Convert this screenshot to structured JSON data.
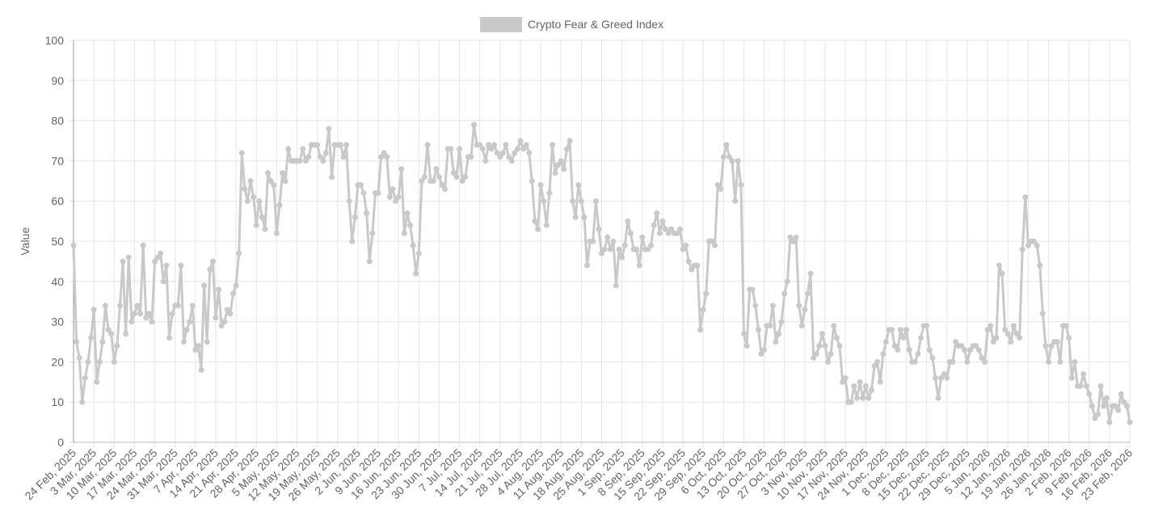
{
  "chart_data": {
    "type": "line",
    "y_label": "Value",
    "ylim": [
      0,
      100
    ],
    "yticks": [
      0,
      10,
      20,
      30,
      40,
      50,
      60,
      70,
      80,
      90,
      100
    ],
    "grid": true,
    "legend": "top",
    "categories": [
      "24 Feb, 2025",
      null,
      null,
      null,
      null,
      null,
      null,
      "3 Mar, 2025",
      null,
      null,
      null,
      null,
      null,
      null,
      "10 Mar, 2025",
      null,
      null,
      null,
      null,
      null,
      null,
      "17 Mar, 2025",
      null,
      null,
      null,
      null,
      null,
      null,
      "24 Mar, 2025",
      null,
      null,
      null,
      null,
      null,
      null,
      "31 Mar, 2025",
      null,
      null,
      null,
      null,
      null,
      null,
      "7 Apr, 2025",
      null,
      null,
      null,
      null,
      null,
      null,
      "14 Apr, 2025",
      null,
      null,
      null,
      null,
      null,
      null,
      "21 Apr, 2025",
      null,
      null,
      null,
      null,
      null,
      null,
      "28 Apr, 2025",
      null,
      null,
      null,
      null,
      null,
      null,
      "5 May, 2025",
      null,
      null,
      null,
      null,
      null,
      null,
      "12 May, 2025",
      null,
      null,
      null,
      null,
      null,
      null,
      "19 May, 2025",
      null,
      null,
      null,
      null,
      null,
      null,
      "26 May, 2025",
      null,
      null,
      null,
      null,
      null,
      null,
      "2 Jun, 2025",
      null,
      null,
      null,
      null,
      null,
      null,
      "9 Jun, 2025",
      null,
      null,
      null,
      null,
      null,
      null,
      "16 Jun, 2025",
      null,
      null,
      null,
      null,
      null,
      null,
      "23 Jun, 2025",
      null,
      null,
      null,
      null,
      null,
      null,
      "30 Jun, 2025",
      null,
      null,
      null,
      null,
      null,
      null,
      "7 Jul, 2025",
      null,
      null,
      null,
      null,
      null,
      null,
      "14 Jul, 2025",
      null,
      null,
      null,
      null,
      null,
      null,
      "21 Jul, 2025",
      null,
      null,
      null,
      null,
      null,
      null,
      "28 Jul, 2025",
      null,
      null,
      null,
      null,
      null,
      null,
      "4 Aug, 2025",
      null,
      null,
      null,
      null,
      null,
      null,
      "11 Aug, 2025",
      null,
      null,
      null,
      null,
      null,
      null,
      "18 Aug, 2025",
      null,
      null,
      null,
      null,
      null,
      null,
      "25 Aug, 2025",
      null,
      null,
      null,
      null,
      null,
      null,
      "1 Sep, 2025",
      null,
      null,
      null,
      null,
      null,
      null,
      "8 Sep, 2025",
      null,
      null,
      null,
      null,
      null,
      null,
      "15 Sep, 2025",
      null,
      null,
      null,
      null,
      null,
      null,
      "22 Sep, 2025",
      null,
      null,
      null,
      null,
      null,
      null,
      "29 Sep, 2025",
      null,
      null,
      null,
      null,
      null,
      null,
      "6 Oct, 2025",
      null,
      null,
      null,
      null,
      null,
      null,
      "13 Oct, 2025",
      null,
      null,
      null,
      null,
      null,
      null,
      "20 Oct, 2025",
      null,
      null,
      null,
      null,
      null,
      null,
      "27 Oct, 2025",
      null,
      null,
      null,
      null,
      null,
      null,
      "3 Nov, 2025",
      null,
      null,
      null,
      null,
      null,
      null,
      "10 Nov, 2025",
      null,
      null,
      null,
      null,
      null,
      null,
      "17 Nov, 2025",
      null,
      null,
      null,
      null,
      null,
      null,
      "24 Nov, 2025",
      null,
      null,
      null,
      null,
      null,
      null,
      "1 Dec, 2025",
      null,
      null,
      null,
      null,
      null,
      null,
      "8 Dec, 2025",
      null,
      null,
      null,
      null,
      null,
      null,
      "15 Dec, 2025",
      null,
      null,
      null,
      null,
      null,
      null,
      "22 Dec, 2025",
      null,
      null,
      null,
      null,
      null,
      null,
      "29 Dec, 2025",
      null,
      null,
      null,
      null,
      null,
      null,
      "5 Jan, 2026",
      null,
      null,
      null,
      null,
      null,
      null,
      "12 Jan, 2026",
      null,
      null,
      null,
      null,
      null,
      null,
      "19 Jan, 2026",
      null,
      null,
      null,
      null,
      null,
      null,
      "26 Jan, 2026",
      null,
      null,
      null,
      null,
      null,
      null,
      "2 Feb, 2026",
      null,
      null,
      null,
      null,
      null,
      null,
      "9 Feb, 2026",
      null,
      null,
      null,
      null,
      null,
      null,
      "16 Feb, 2026",
      null,
      null,
      null,
      null,
      null,
      null,
      "23 Feb, 2026"
    ],
    "series": [
      {
        "name": "Crypto Fear & Greed Index",
        "color": "#c9c9c9",
        "values": [
          49,
          25,
          21,
          10,
          16,
          20,
          26,
          33,
          15,
          20,
          25,
          34,
          28,
          27,
          20,
          24,
          34,
          45,
          27,
          46,
          30,
          32,
          34,
          32,
          49,
          31,
          32,
          30,
          45,
          46,
          47,
          40,
          44,
          26,
          32,
          34,
          34,
          44,
          25,
          28,
          30,
          34,
          23,
          24,
          18,
          39,
          25,
          43,
          45,
          31,
          38,
          29,
          30,
          33,
          32,
          37,
          39,
          47,
          72,
          63,
          60,
          65,
          61,
          54,
          60,
          56,
          53,
          67,
          65,
          64,
          52,
          59,
          67,
          65,
          73,
          70,
          70,
          70,
          70,
          73,
          70,
          71,
          74,
          74,
          74,
          71,
          70,
          72,
          78,
          66,
          74,
          74,
          74,
          71,
          74,
          60,
          50,
          56,
          64,
          64,
          62,
          57,
          45,
          52,
          62,
          62,
          71,
          72,
          71,
          61,
          63,
          60,
          61,
          68,
          52,
          57,
          54,
          49,
          42,
          47,
          65,
          66,
          74,
          65,
          65,
          68,
          66,
          64,
          63,
          73,
          73,
          67,
          66,
          73,
          65,
          66,
          71,
          71,
          79,
          74,
          74,
          73,
          70,
          74,
          73,
          74,
          72,
          71,
          72,
          74,
          71,
          70,
          72,
          73,
          75,
          73,
          74,
          72,
          65,
          55,
          53,
          64,
          60,
          54,
          62,
          74,
          67,
          69,
          70,
          68,
          73,
          75,
          60,
          56,
          64,
          60,
          56,
          44,
          50,
          50,
          60,
          53,
          47,
          48,
          51,
          48,
          50,
          39,
          48,
          46,
          49,
          55,
          52,
          48,
          48,
          44,
          51,
          48,
          48,
          49,
          54,
          57,
          52,
          55,
          53,
          52,
          53,
          52,
          52,
          53,
          48,
          49,
          45,
          43,
          44,
          44,
          28,
          33,
          37,
          50,
          50,
          49,
          64,
          63,
          71,
          74,
          71,
          70,
          60,
          70,
          64,
          27,
          24,
          38,
          38,
          34,
          28,
          22,
          23,
          29,
          29,
          34,
          25,
          27,
          30,
          37,
          40,
          51,
          50,
          51,
          34,
          29,
          33,
          37,
          42,
          21,
          22,
          24,
          27,
          24,
          20,
          22,
          29,
          26,
          24,
          15,
          16,
          10,
          10,
          14,
          11,
          15,
          11,
          14,
          11,
          13,
          19,
          20,
          15,
          22,
          25,
          28,
          28,
          24,
          23,
          28,
          26,
          28,
          23,
          20,
          20,
          22,
          26,
          29,
          29,
          23,
          21,
          16,
          11,
          16,
          17,
          16,
          20,
          20,
          25,
          24,
          24,
          23,
          20,
          23,
          24,
          24,
          23,
          21,
          20,
          28,
          29,
          25,
          26,
          44,
          42,
          28,
          27,
          25,
          29,
          27,
          26,
          48,
          61,
          49,
          50,
          50,
          49,
          44,
          32,
          24,
          20,
          24,
          25,
          25,
          20,
          29,
          29,
          26,
          16,
          20,
          14,
          14,
          17,
          14,
          12,
          9,
          6,
          7,
          14,
          9,
          11,
          5,
          9,
          9,
          8,
          12,
          10,
          9,
          5
        ]
      }
    ]
  }
}
